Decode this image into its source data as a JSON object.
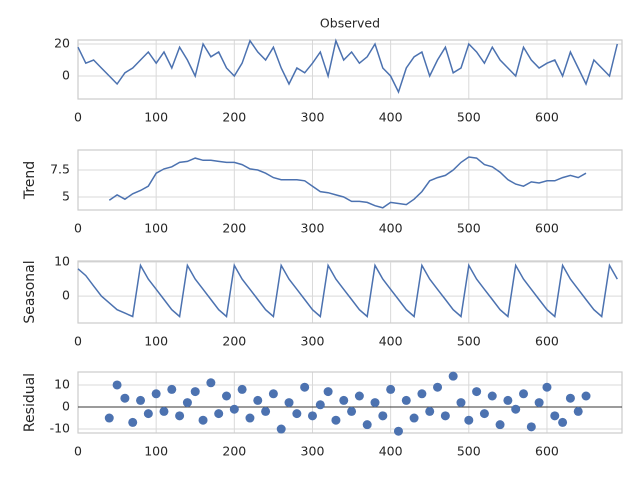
{
  "chart_data": [
    {
      "type": "line",
      "title": "Observed",
      "color": "#4c72b0",
      "grid": true,
      "x": [
        0,
        10,
        20,
        30,
        40,
        50,
        60,
        70,
        80,
        90,
        100,
        110,
        120,
        130,
        140,
        150,
        160,
        170,
        180,
        190,
        200,
        210,
        220,
        230,
        240,
        250,
        260,
        270,
        280,
        290,
        300,
        310,
        320,
        330,
        340,
        350,
        360,
        370,
        380,
        390,
        400,
        410,
        420,
        430,
        440,
        450,
        460,
        470,
        480,
        490,
        500,
        510,
        520,
        530,
        540,
        550,
        560,
        570,
        580,
        590,
        600,
        610,
        620,
        630,
        640,
        650,
        660,
        670,
        680,
        690
      ],
      "values": [
        18,
        8,
        10,
        5,
        0,
        -5,
        2,
        5,
        10,
        15,
        8,
        15,
        5,
        18,
        10,
        0,
        20,
        12,
        15,
        5,
        0,
        8,
        22,
        15,
        10,
        18,
        5,
        -5,
        5,
        2,
        8,
        15,
        0,
        22,
        10,
        15,
        8,
        12,
        20,
        5,
        0,
        -10,
        5,
        12,
        15,
        0,
        10,
        18,
        2,
        5,
        20,
        15,
        8,
        18,
        10,
        5,
        0,
        18,
        10,
        5,
        8,
        10,
        0,
        15,
        5,
        -5,
        10,
        5,
        0,
        20
      ],
      "xlim": [
        0,
        696
      ],
      "ylim": [
        -14.4,
        22.5
      ],
      "xticks": [
        0,
        100,
        200,
        300,
        400,
        500,
        600
      ],
      "yticks": [
        0,
        20
      ]
    },
    {
      "type": "line",
      "ylabel": "Trend",
      "color": "#4c72b0",
      "grid": true,
      "x": [
        40,
        50,
        60,
        70,
        80,
        90,
        100,
        110,
        120,
        130,
        140,
        150,
        160,
        170,
        180,
        190,
        200,
        210,
        220,
        230,
        240,
        250,
        260,
        270,
        280,
        290,
        300,
        310,
        320,
        330,
        340,
        350,
        360,
        370,
        380,
        390,
        400,
        410,
        420,
        430,
        440,
        450,
        460,
        470,
        480,
        490,
        500,
        510,
        520,
        530,
        540,
        550,
        560,
        570,
        580,
        590,
        600,
        610,
        620,
        630,
        640,
        650
      ],
      "values": [
        4.7,
        5.2,
        4.8,
        5.3,
        5.6,
        6.0,
        7.2,
        7.6,
        7.8,
        8.2,
        8.3,
        8.6,
        8.4,
        8.4,
        8.3,
        8.2,
        8.2,
        8.0,
        7.6,
        7.5,
        7.2,
        6.8,
        6.6,
        6.6,
        6.6,
        6.5,
        6.0,
        5.5,
        5.4,
        5.2,
        5.0,
        4.6,
        4.6,
        4.5,
        4.2,
        4.0,
        4.5,
        4.4,
        4.3,
        4.8,
        5.5,
        6.5,
        6.8,
        7.0,
        7.5,
        8.2,
        8.7,
        8.6,
        8.0,
        7.8,
        7.3,
        6.6,
        6.2,
        6.0,
        6.4,
        6.3,
        6.5,
        6.5,
        6.8,
        7.0,
        6.8,
        7.2
      ],
      "xlim": [
        0,
        696
      ],
      "ylim": [
        3.8,
        9.35
      ],
      "xticks": [
        0,
        100,
        200,
        300,
        400,
        500,
        600
      ],
      "yticks": [
        5.0,
        7.5
      ]
    },
    {
      "type": "line",
      "ylabel": "Seasonal",
      "color": "#4c72b0",
      "grid": true,
      "x": [
        0,
        10,
        20,
        30,
        40,
        50,
        60,
        70,
        80,
        90,
        100,
        110,
        120,
        130,
        140,
        150,
        160,
        170,
        180,
        190,
        200,
        210,
        220,
        230,
        240,
        250,
        260,
        270,
        280,
        290,
        300,
        310,
        320,
        330,
        340,
        350,
        360,
        370,
        380,
        390,
        400,
        410,
        420,
        430,
        440,
        450,
        460,
        470,
        480,
        490,
        500,
        510,
        520,
        530,
        540,
        550,
        560,
        570,
        580,
        590,
        600,
        610,
        620,
        630,
        640,
        650,
        660,
        670,
        680,
        690
      ],
      "values": [
        8,
        6,
        3,
        0,
        -2,
        -4,
        -5,
        -6,
        9,
        5,
        2,
        -1,
        -4,
        -6,
        9,
        5,
        2,
        -1,
        -4,
        -6,
        9,
        5,
        2,
        -1,
        -4,
        -6,
        9,
        5,
        2,
        -1,
        -4,
        -6,
        9,
        5,
        2,
        -1,
        -4,
        -6,
        9,
        5,
        2,
        -1,
        -4,
        -6,
        9,
        5,
        2,
        -1,
        -4,
        -6,
        9,
        5,
        2,
        -1,
        -4,
        -6,
        9,
        5,
        2,
        -1,
        -4,
        -6,
        9,
        5,
        2,
        -1,
        -4,
        -6,
        9,
        5
      ],
      "xlim": [
        0,
        696
      ],
      "ylim": [
        -7.9,
        10.3
      ],
      "xticks": [
        0,
        100,
        200,
        300,
        400,
        500,
        600
      ],
      "yticks": [
        0,
        10
      ]
    },
    {
      "type": "scatter",
      "ylabel": "Residual",
      "color": "#4c72b0",
      "grid": true,
      "x": [
        40,
        50,
        60,
        70,
        80,
        90,
        100,
        110,
        120,
        130,
        140,
        150,
        160,
        170,
        180,
        190,
        200,
        210,
        220,
        230,
        240,
        250,
        260,
        270,
        280,
        290,
        300,
        310,
        320,
        330,
        340,
        350,
        360,
        370,
        380,
        390,
        400,
        410,
        420,
        430,
        440,
        450,
        460,
        470,
        480,
        490,
        500,
        510,
        520,
        530,
        540,
        550,
        560,
        570,
        580,
        590,
        600,
        610,
        620,
        630,
        640,
        650
      ],
      "values": [
        -5,
        10,
        4,
        -7,
        3,
        -3,
        6,
        -2,
        8,
        -4,
        2,
        7,
        -6,
        11,
        -3,
        5,
        -1,
        8,
        -5,
        3,
        -2,
        6,
        -10,
        2,
        -3,
        9,
        -4,
        1,
        7,
        -6,
        3,
        -2,
        5,
        -8,
        2,
        -4,
        8,
        -11,
        3,
        -5,
        6,
        -2,
        9,
        -4,
        14,
        2,
        -6,
        7,
        -3,
        5,
        -8,
        3,
        -1,
        6,
        -9,
        2,
        9,
        -4,
        -7,
        4,
        -2,
        5
      ],
      "xlim": [
        0,
        696
      ],
      "ylim": [
        -11.8,
        15.9
      ],
      "xticks": [
        0,
        100,
        200,
        300,
        400,
        500,
        600
      ],
      "yticks": [
        -10,
        0,
        10
      ]
    }
  ]
}
